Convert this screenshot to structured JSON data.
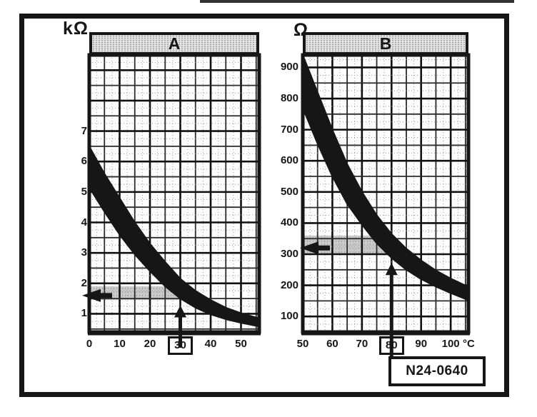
{
  "figure": {
    "reference_label": "N24-0640"
  },
  "colors": {
    "ink": "#161616",
    "paper": "#fdfdfd",
    "shade_bg": "#e3e3e3",
    "highlight_bg": "#c9c9c9",
    "stipple_dot": "#777777"
  },
  "chart_data": [
    {
      "id": "A",
      "type": "area",
      "title": "A",
      "y_unit": "kΩ",
      "x_unit": "",
      "x_ticks": [
        0,
        10,
        20,
        30,
        40,
        50
      ],
      "y_ticks": [
        1,
        2,
        3,
        4,
        5,
        6,
        7
      ],
      "x_range": [
        0,
        56
      ],
      "y_range": [
        0.4,
        9.5
      ],
      "x_steps": {
        "minor": 2.5,
        "mid": 5,
        "major": 10
      },
      "y_steps": {
        "minor": 0.25,
        "mid": 0.5,
        "major": 1
      },
      "grid": "on",
      "band_upper": [
        [
          0,
          6.5
        ],
        [
          5,
          5.6
        ],
        [
          10,
          4.8
        ],
        [
          15,
          4.0
        ],
        [
          20,
          3.3
        ],
        [
          25,
          2.7
        ],
        [
          30,
          2.15
        ],
        [
          35,
          1.75
        ],
        [
          40,
          1.45
        ],
        [
          45,
          1.2
        ],
        [
          50,
          1.02
        ],
        [
          56,
          0.85
        ]
      ],
      "band_lower": [
        [
          0,
          5.15
        ],
        [
          5,
          4.35
        ],
        [
          10,
          3.6
        ],
        [
          15,
          2.95
        ],
        [
          20,
          2.4
        ],
        [
          25,
          1.9
        ],
        [
          30,
          1.5
        ],
        [
          35,
          1.2
        ],
        [
          40,
          0.98
        ],
        [
          45,
          0.82
        ],
        [
          50,
          0.7
        ],
        [
          56,
          0.58
        ]
      ],
      "marked_x": 30,
      "marked_x_boxed": true,
      "pointer_y": 1.6,
      "highlight_y_band": [
        1.45,
        1.9
      ],
      "vertical_arrow_tip_y": 1.28
    },
    {
      "id": "B",
      "type": "area",
      "title": "B",
      "y_unit": "Ω",
      "x_unit": "°C",
      "x_ticks": [
        50,
        60,
        70,
        80,
        90,
        100
      ],
      "y_ticks": [
        100,
        200,
        300,
        400,
        500,
        600,
        700,
        800,
        900
      ],
      "x_range": [
        50,
        106
      ],
      "y_range": [
        50,
        940
      ],
      "x_steps": {
        "minor": 2.5,
        "mid": 5,
        "major": 10
      },
      "y_steps": {
        "minor": 25,
        "mid": 50,
        "major": 100
      },
      "grid": "on",
      "band_upper": [
        [
          50,
          945
        ],
        [
          55,
          820
        ],
        [
          60,
          700
        ],
        [
          65,
          590
        ],
        [
          70,
          500
        ],
        [
          75,
          425
        ],
        [
          80,
          365
        ],
        [
          85,
          318
        ],
        [
          90,
          280
        ],
        [
          95,
          248
        ],
        [
          100,
          222
        ],
        [
          106,
          195
        ]
      ],
      "band_lower": [
        [
          50,
          770
        ],
        [
          55,
          655
        ],
        [
          60,
          550
        ],
        [
          65,
          462
        ],
        [
          70,
          395
        ],
        [
          75,
          335
        ],
        [
          80,
          288
        ],
        [
          85,
          250
        ],
        [
          90,
          220
        ],
        [
          95,
          196
        ],
        [
          100,
          175
        ],
        [
          106,
          152
        ]
      ],
      "marked_x": 80,
      "marked_x_boxed": true,
      "pointer_y": 320,
      "highlight_y_band": [
        300,
        360
      ],
      "vertical_arrow_tip_y": 272
    }
  ]
}
